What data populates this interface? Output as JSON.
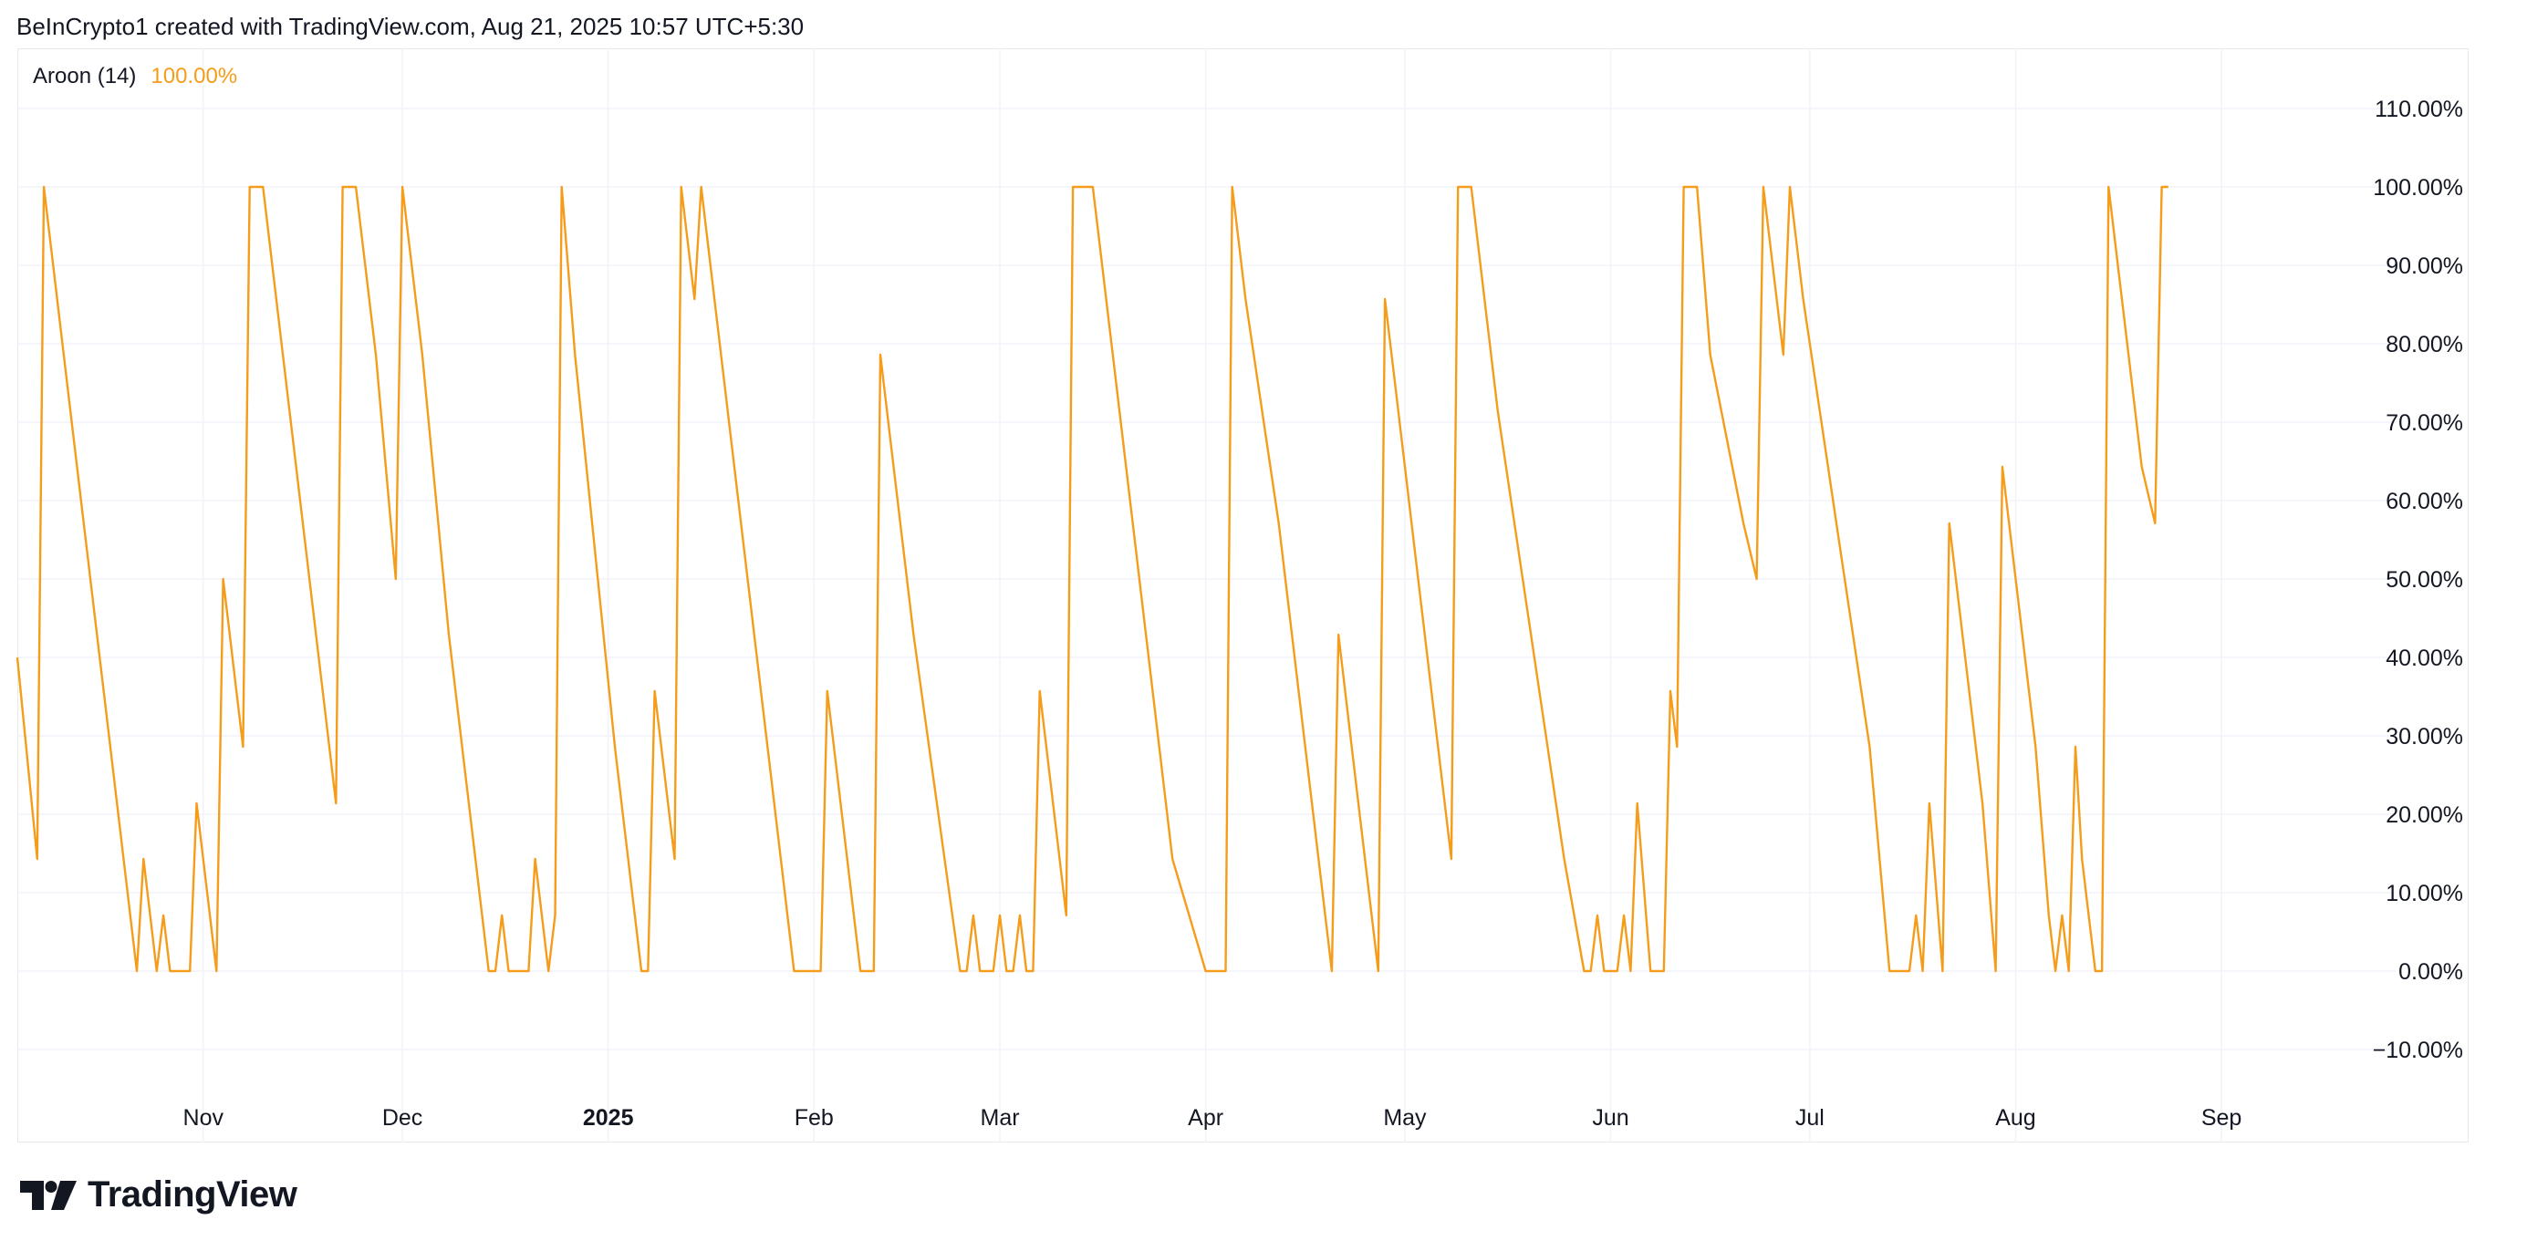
{
  "header": {
    "text": "BeInCrypto1 created with TradingView.com, Aug 21, 2025 10:57 UTC+5:30"
  },
  "legend": {
    "name": "Aroon (14)",
    "value": "100.00%"
  },
  "brand": {
    "name": "TradingView",
    "logo_icon": "tradingview-logo-icon"
  },
  "colors": {
    "line": "#f59c1a",
    "grid": "#f0f3fa",
    "text": "#131722"
  },
  "chart_data": {
    "type": "line",
    "ylim": [
      -15,
      115
    ],
    "y_ticks": [
      110,
      100,
      90,
      80,
      70,
      60,
      50,
      40,
      30,
      20,
      10,
      0,
      -10
    ],
    "y_tick_labels": [
      "110.00%",
      "100.00%",
      "90.00%",
      "80.00%",
      "70.00%",
      "60.00%",
      "50.00%",
      "40.00%",
      "30.00%",
      "20.00%",
      "10.00%",
      "0.00%",
      "−10.00%"
    ],
    "x_ticks": [
      {
        "label": "Nov",
        "date": "2024-11-01",
        "bold": false
      },
      {
        "label": "Dec",
        "date": "2024-12-01",
        "bold": false
      },
      {
        "label": "2025",
        "date": "2025-01-01",
        "bold": true
      },
      {
        "label": "Feb",
        "date": "2025-02-01",
        "bold": false
      },
      {
        "label": "Mar",
        "date": "2025-03-01",
        "bold": false
      },
      {
        "label": "Apr",
        "date": "2025-04-01",
        "bold": false
      },
      {
        "label": "May",
        "date": "2025-05-01",
        "bold": false
      },
      {
        "label": "Jun",
        "date": "2025-06-01",
        "bold": false
      },
      {
        "label": "Jul",
        "date": "2025-07-01",
        "bold": false
      },
      {
        "label": "Aug",
        "date": "2025-08-01",
        "bold": false
      },
      {
        "label": "Sep",
        "date": "2025-09-01",
        "bold": false
      }
    ],
    "xlim": [
      "2024-10-04",
      "2025-09-08"
    ],
    "series": [
      {
        "values": [
          [
            "2024-10-04",
            40
          ],
          [
            "2024-10-07",
            14.3
          ],
          [
            "2024-10-08",
            100
          ],
          [
            "2024-10-12",
            71.4
          ],
          [
            "2024-10-18",
            28.6
          ],
          [
            "2024-10-22",
            0
          ],
          [
            "2024-10-23",
            14.3
          ],
          [
            "2024-10-25",
            0
          ],
          [
            "2024-10-26",
            7.1
          ],
          [
            "2024-10-27",
            0
          ],
          [
            "2024-10-30",
            0
          ],
          [
            "2024-10-31",
            21.4
          ],
          [
            "2024-11-03",
            0
          ],
          [
            "2024-11-04",
            50
          ],
          [
            "2024-11-07",
            28.6
          ],
          [
            "2024-11-08",
            100
          ],
          [
            "2024-11-10",
            100
          ],
          [
            "2024-11-14",
            71.4
          ],
          [
            "2024-11-21",
            21.4
          ],
          [
            "2024-11-22",
            100
          ],
          [
            "2024-11-24",
            100
          ],
          [
            "2024-11-27",
            78.6
          ],
          [
            "2024-11-30",
            50
          ],
          [
            "2024-12-01",
            100
          ],
          [
            "2024-12-04",
            78.6
          ],
          [
            "2024-12-08",
            42.9
          ],
          [
            "2024-12-14",
            0
          ],
          [
            "2024-12-15",
            0
          ],
          [
            "2024-12-16",
            7.1
          ],
          [
            "2024-12-17",
            0
          ],
          [
            "2024-12-20",
            0
          ],
          [
            "2024-12-21",
            14.3
          ],
          [
            "2024-12-23",
            0
          ],
          [
            "2024-12-24",
            7.1
          ],
          [
            "2024-12-25",
            100
          ],
          [
            "2024-12-27",
            78.6
          ],
          [
            "2025-01-02",
            28.6
          ],
          [
            "2025-01-06",
            0
          ],
          [
            "2025-01-07",
            0
          ],
          [
            "2025-01-08",
            35.7
          ],
          [
            "2025-01-11",
            14.3
          ],
          [
            "2025-01-12",
            100
          ],
          [
            "2025-01-14",
            85.7
          ],
          [
            "2025-01-15",
            100
          ],
          [
            "2025-01-19",
            71.4
          ],
          [
            "2025-01-27",
            14.3
          ],
          [
            "2025-01-29",
            0
          ],
          [
            "2025-02-02",
            0
          ],
          [
            "2025-02-03",
            35.7
          ],
          [
            "2025-02-04",
            28.6
          ],
          [
            "2025-02-08",
            0
          ],
          [
            "2025-02-10",
            0
          ],
          [
            "2025-02-11",
            78.6
          ],
          [
            "2025-02-12",
            71.4
          ],
          [
            "2025-02-16",
            42.9
          ],
          [
            "2025-02-23",
            0
          ],
          [
            "2025-02-24",
            0
          ],
          [
            "2025-02-25",
            7.1
          ],
          [
            "2025-02-26",
            0
          ],
          [
            "2025-02-28",
            0
          ],
          [
            "2025-03-01",
            7.1
          ],
          [
            "2025-03-02",
            0
          ],
          [
            "2025-03-03",
            0
          ],
          [
            "2025-03-04",
            7.1
          ],
          [
            "2025-03-05",
            0
          ],
          [
            "2025-03-06",
            0
          ],
          [
            "2025-03-07",
            35.7
          ],
          [
            "2025-03-10",
            14.3
          ],
          [
            "2025-03-11",
            7.1
          ],
          [
            "2025-03-12",
            100
          ],
          [
            "2025-03-15",
            100
          ],
          [
            "2025-03-18",
            78.6
          ],
          [
            "2025-03-25",
            28.6
          ],
          [
            "2025-03-27",
            14.3
          ],
          [
            "2025-04-01",
            0
          ],
          [
            "2025-04-04",
            0
          ],
          [
            "2025-04-05",
            100
          ],
          [
            "2025-04-07",
            85.7
          ],
          [
            "2025-04-12",
            57.1
          ],
          [
            "2025-04-20",
            0
          ],
          [
            "2025-04-21",
            42.9
          ],
          [
            "2025-04-24",
            21.4
          ],
          [
            "2025-04-27",
            0
          ],
          [
            "2025-04-28",
            85.7
          ],
          [
            "2025-04-29",
            78.6
          ],
          [
            "2025-05-01",
            64.3
          ],
          [
            "2025-05-06",
            28.6
          ],
          [
            "2025-05-08",
            14.3
          ],
          [
            "2025-05-09",
            100
          ],
          [
            "2025-05-11",
            100
          ],
          [
            "2025-05-15",
            71.4
          ],
          [
            "2025-05-20",
            42.9
          ],
          [
            "2025-05-25",
            14.3
          ],
          [
            "2025-05-28",
            0
          ],
          [
            "2025-05-29",
            0
          ],
          [
            "2025-05-30",
            7.1
          ],
          [
            "2025-05-31",
            0
          ],
          [
            "2025-06-02",
            0
          ],
          [
            "2025-06-03",
            7.1
          ],
          [
            "2025-06-04",
            0
          ],
          [
            "2025-06-05",
            21.4
          ],
          [
            "2025-06-07",
            0
          ],
          [
            "2025-06-09",
            0
          ],
          [
            "2025-06-10",
            35.7
          ],
          [
            "2025-06-11",
            28.6
          ],
          [
            "2025-06-12",
            100
          ],
          [
            "2025-06-14",
            100
          ],
          [
            "2025-06-16",
            78.6
          ],
          [
            "2025-06-21",
            57.1
          ],
          [
            "2025-06-23",
            50
          ],
          [
            "2025-06-24",
            100
          ],
          [
            "2025-06-27",
            78.6
          ],
          [
            "2025-06-28",
            100
          ],
          [
            "2025-06-30",
            85.7
          ],
          [
            "2025-07-05",
            57.1
          ],
          [
            "2025-07-10",
            28.6
          ],
          [
            "2025-07-13",
            0
          ],
          [
            "2025-07-16",
            0
          ],
          [
            "2025-07-17",
            7.1
          ],
          [
            "2025-07-18",
            0
          ],
          [
            "2025-07-19",
            21.4
          ],
          [
            "2025-07-21",
            0
          ],
          [
            "2025-07-22",
            57.1
          ],
          [
            "2025-07-24",
            42.9
          ],
          [
            "2025-07-27",
            21.4
          ],
          [
            "2025-07-29",
            0
          ],
          [
            "2025-07-30",
            64.3
          ],
          [
            "2025-08-01",
            50
          ],
          [
            "2025-08-04",
            28.6
          ],
          [
            "2025-08-06",
            7.1
          ],
          [
            "2025-08-07",
            0
          ],
          [
            "2025-08-08",
            7.1
          ],
          [
            "2025-08-09",
            0
          ],
          [
            "2025-08-10",
            28.6
          ],
          [
            "2025-08-11",
            14.3
          ],
          [
            "2025-08-13",
            0
          ],
          [
            "2025-08-14",
            0
          ],
          [
            "2025-08-15",
            100
          ],
          [
            "2025-08-18",
            78.6
          ],
          [
            "2025-08-20",
            64.3
          ],
          [
            "2025-08-22",
            57.1
          ],
          [
            "2025-08-23",
            100
          ],
          [
            "2025-08-24",
            100
          ]
        ]
      }
    ],
    "grid": true
  }
}
